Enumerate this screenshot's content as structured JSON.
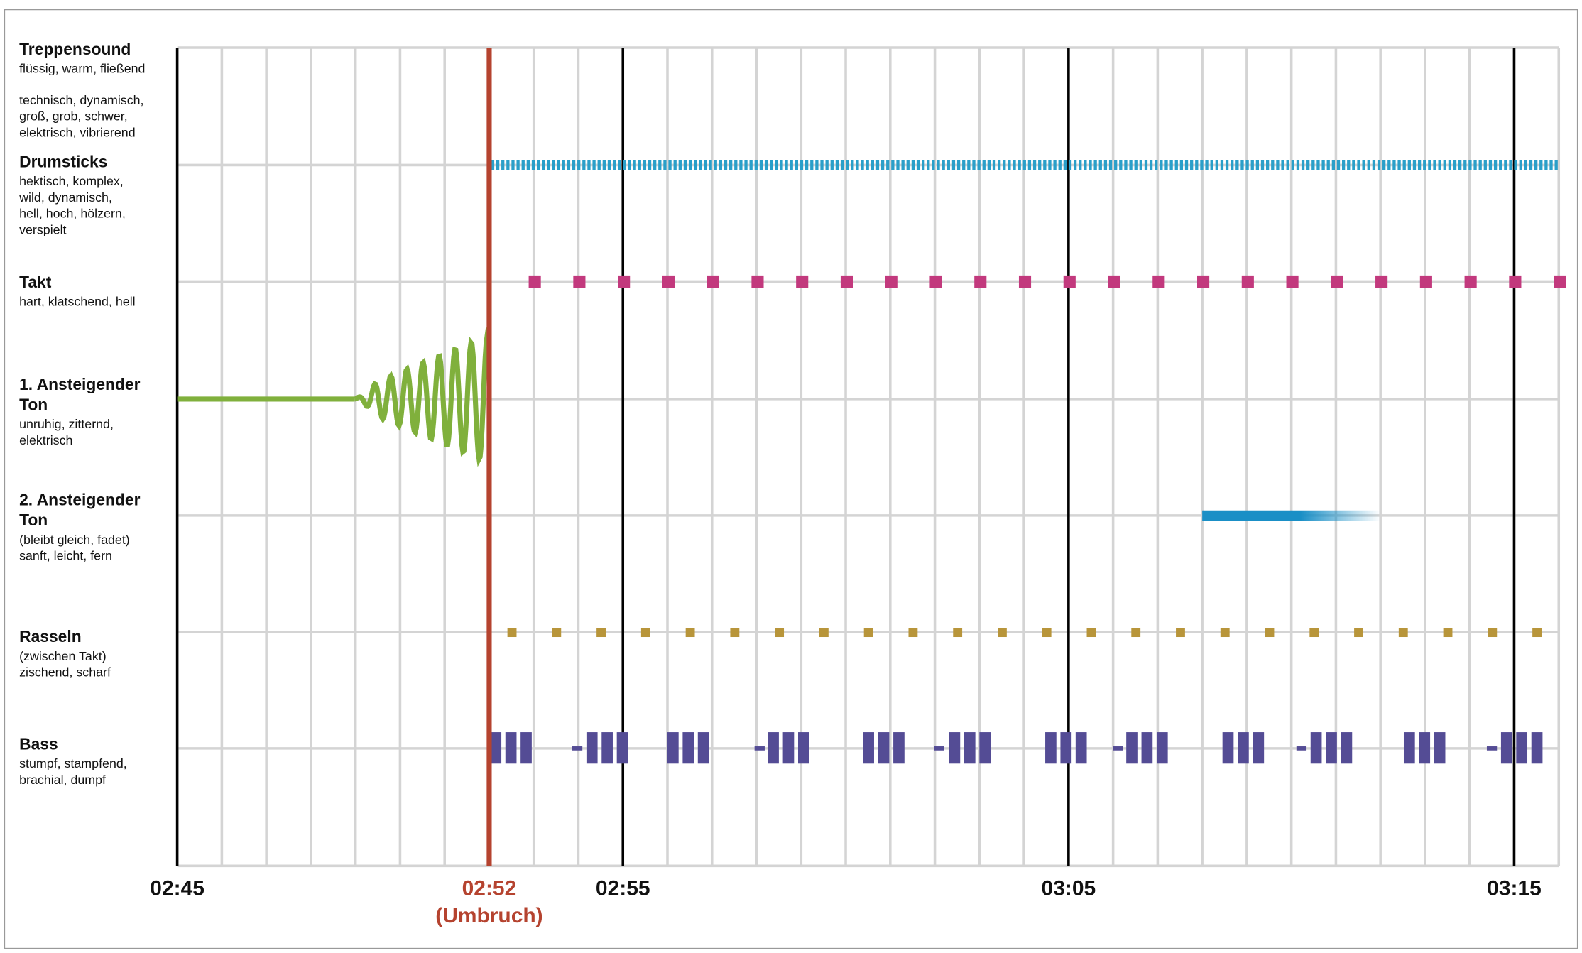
{
  "tracks": [
    {
      "name": "Treppensound",
      "lines": [
        "flüssig, warm, fließend"
      ],
      "lines_2": [
        "technisch, dynamisch,",
        "groß, grob, schwer,",
        "elektrisch, vibrierend"
      ]
    },
    {
      "name": "Drumsticks",
      "lines": [
        "hektisch, komplex,",
        "wild, dynamisch,",
        "hell, hoch, hölzern,",
        "verspielt"
      ]
    },
    {
      "name": "Takt",
      "lines": [
        "hart, klatschend, hell"
      ]
    },
    {
      "name": "1. Ansteigender Ton",
      "lines": [
        "unruhig, zitternd,",
        "elektrisch"
      ]
    },
    {
      "name": "2. Ansteigender Ton",
      "lines": [
        "(bleibt gleich, fadet)",
        "sanft, leicht, fern"
      ]
    },
    {
      "name": "Rasseln",
      "lines": [
        "(zwischen Takt)",
        "zischend, scharf"
      ]
    },
    {
      "name": "Bass",
      "lines": [
        "stumpf, stampfend,",
        "brachial, dumpf"
      ]
    }
  ],
  "timeline": {
    "start": "02:45",
    "break": "02:52",
    "break_note": "(Umbruch)",
    "marks": [
      "02:55",
      "03:05",
      "03:15"
    ]
  }
}
